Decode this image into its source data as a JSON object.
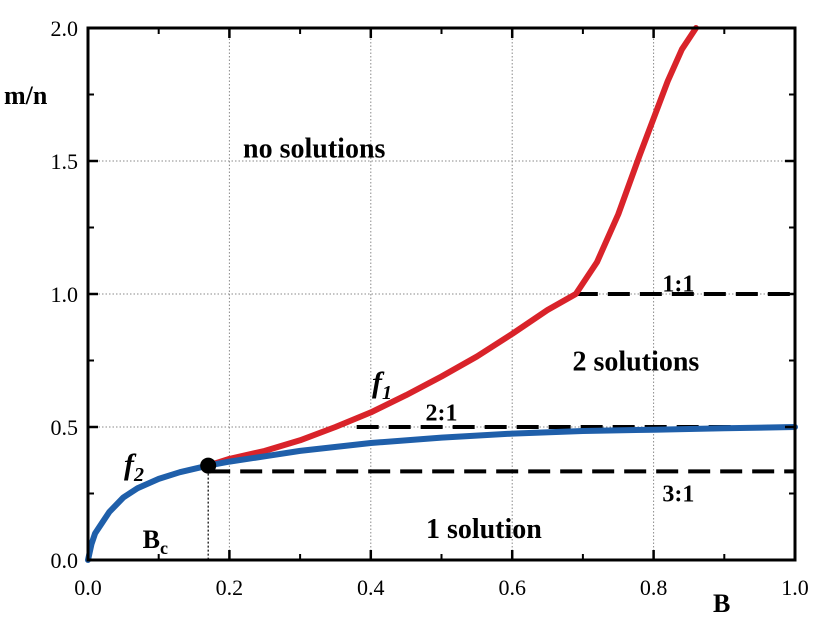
{
  "chart_data": {
    "type": "line",
    "xlabel": "B",
    "ylabel": "m/n",
    "xlim": [
      0,
      1.0
    ],
    "ylim": [
      0,
      2.0
    ],
    "grid": true,
    "x_ticks": [
      "0.0",
      "0.2",
      "0.4",
      "0.6",
      "0.8",
      "1.0"
    ],
    "y_ticks": [
      "0.0",
      "0.5",
      "1.0",
      "1.5",
      "2.0"
    ],
    "series": [
      {
        "name": "f1",
        "label_main": "f",
        "label_sub": "1",
        "color": "#d9232a",
        "x": [
          0.17,
          0.2,
          0.25,
          0.3,
          0.35,
          0.4,
          0.45,
          0.5,
          0.55,
          0.6,
          0.65,
          0.69,
          0.72,
          0.75,
          0.78,
          0.8,
          0.82,
          0.84,
          0.86
        ],
        "y": [
          0.355,
          0.38,
          0.41,
          0.45,
          0.5,
          0.555,
          0.62,
          0.69,
          0.765,
          0.85,
          0.94,
          1.0,
          1.12,
          1.3,
          1.52,
          1.66,
          1.8,
          1.92,
          2.0
        ]
      },
      {
        "name": "f2",
        "label_main": "f",
        "label_sub": "2",
        "color": "#1f5faa",
        "x": [
          0.0,
          0.005,
          0.01,
          0.02,
          0.03,
          0.05,
          0.07,
          0.1,
          0.13,
          0.17,
          0.2,
          0.25,
          0.3,
          0.4,
          0.5,
          0.6,
          0.7,
          0.8,
          0.9,
          1.0
        ],
        "y": [
          0.0,
          0.06,
          0.1,
          0.14,
          0.18,
          0.235,
          0.27,
          0.305,
          0.33,
          0.355,
          0.37,
          0.39,
          0.41,
          0.44,
          0.46,
          0.475,
          0.485,
          0.49,
          0.495,
          0.5
        ]
      }
    ],
    "reference_lines": [
      {
        "label": "1:1",
        "y": 1.0,
        "x_dashed_start": 0.69,
        "label_x": 0.835,
        "label_y": 1.04
      },
      {
        "label": "2:1",
        "y": 0.5,
        "x_dashed_start": 0.38,
        "label_x": 0.5,
        "label_y": 0.555
      },
      {
        "label": "3:1",
        "y": 0.3333,
        "x_dashed_start": 0.17,
        "label_x": 0.835,
        "label_y": 0.25
      }
    ],
    "critical_point": {
      "label_main": "B",
      "label_sub": "c",
      "x": 0.17,
      "y": 0.355
    },
    "region_labels": [
      {
        "text": "no solutions",
        "x": 0.32,
        "y": 1.55
      },
      {
        "text": "2 solutions",
        "x": 0.775,
        "y": 0.75
      },
      {
        "text": "1 solution",
        "x": 0.56,
        "y": 0.12
      }
    ]
  }
}
